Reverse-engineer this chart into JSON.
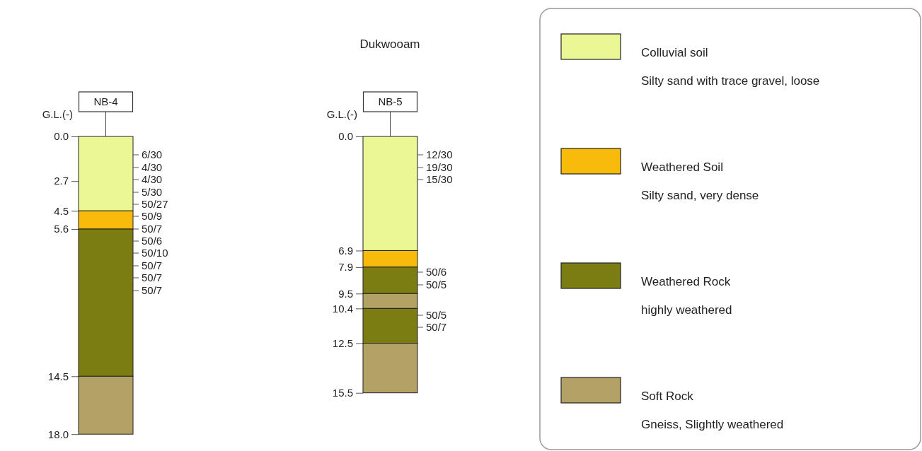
{
  "chart_data": [
    {
      "type": "bar",
      "stacked": true,
      "ylabel": "G.L.(-)",
      "categories": [
        "NB-4"
      ],
      "ylim": [
        18.0,
        0.0
      ],
      "yticks": [
        {
          "value": 0,
          "label": "0.0"
        },
        {
          "value": 2.7,
          "label": "2.7"
        },
        {
          "value": 4.5,
          "label": "4.5"
        },
        {
          "value": 5.6,
          "label": "5.6"
        },
        {
          "value": 14.5,
          "label": "14.5"
        },
        {
          "value": 18,
          "label": "18.0"
        }
      ],
      "series": [
        {
          "color": "#eaf794",
          "values": [
            4.5
          ]
        },
        {
          "color": "#f8bb0c",
          "values": [
            1.1
          ]
        },
        {
          "color": "#7b7d12",
          "values": [
            8.9
          ]
        },
        {
          "color": "#b3a165",
          "values": [
            3.5
          ]
        }
      ],
      "annotations": [
        "6/30",
        "4/30",
        "4/30",
        "5/30",
        "50/27",
        "50/9",
        "50/7",
        "50/6",
        "50/10",
        "50/7",
        "50/7",
        "50/7"
      ]
    },
    {
      "type": "bar",
      "stacked": true,
      "title": "Dukwooam",
      "ylabel": "G.L.(-)",
      "categories": [
        "NB-5"
      ],
      "ylim": [
        15.5,
        0.0
      ],
      "legend": "right",
      "yticks": [
        {
          "value": 0,
          "label": "0.0"
        },
        {
          "value": 6.9,
          "label": "6.9"
        },
        {
          "value": 7.9,
          "label": "7.9"
        },
        {
          "value": 9.5,
          "label": "9.5"
        },
        {
          "value": 10.4,
          "label": "10.4"
        },
        {
          "value": 12.5,
          "label": "12.5"
        },
        {
          "value": 15.5,
          "label": "15.5"
        }
      ],
      "series": [
        {
          "name": "Colluvial soil",
          "color": "#eaf794",
          "values": [
            6.9
          ]
        },
        {
          "name": "Weathered Soil",
          "color": "#f8bb0c",
          "values": [
            1.0
          ]
        },
        {
          "name": "Weathered Rock",
          "color": "#7b7d12",
          "values": [
            1.6
          ]
        },
        {
          "name": "Soft Rock",
          "color": "#b3a165",
          "values": [
            0.9
          ]
        },
        {
          "color": "#7b7d12",
          "values": [
            2.1
          ]
        },
        {
          "color": "#b3a165",
          "values": [
            3.0
          ]
        }
      ],
      "annotations": [
        "Silty sand with trace gravel, loose",
        "Silty sand, very dense",
        "highly weathered",
        "Gneiss, Slightly weathered",
        "12/30",
        "19/30",
        "15/30",
        "50/6",
        "50/5",
        "50/5",
        "50/7"
      ]
    }
  ]
}
